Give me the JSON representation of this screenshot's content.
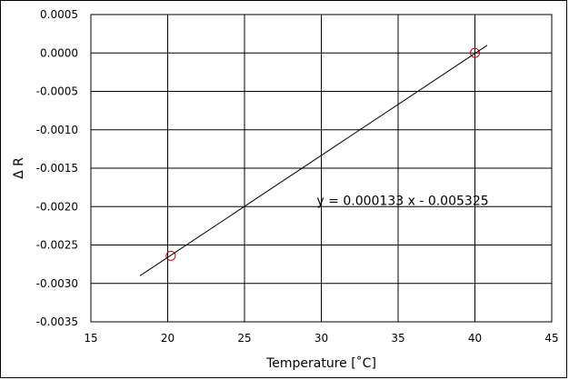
{
  "chart_data": {
    "type": "scatter",
    "xlabel": "Temperature [˚C]",
    "ylabel": "Δ R",
    "xlim": [
      15,
      45
    ],
    "ylim": [
      -0.0035,
      0.0005
    ],
    "x_ticks": [
      15,
      20,
      25,
      30,
      35,
      40,
      45
    ],
    "x_tick_labels": [
      "15",
      "20",
      "25",
      "30",
      "35",
      "40",
      "45"
    ],
    "y_ticks": [
      0.0005,
      0.0,
      -0.0005,
      -0.001,
      -0.0015,
      -0.002,
      -0.0025,
      -0.003,
      -0.0035
    ],
    "y_tick_labels": [
      "0.0005",
      "0.0000",
      "-0.0005",
      "-0.0010",
      "-0.0015",
      "-0.0020",
      "-0.0025",
      "-0.0030",
      "-0.0035"
    ],
    "grid": true,
    "series": [
      {
        "type": "scatter",
        "x": [
          20.2,
          40.0
        ],
        "y": [
          -0.00264,
          0.0
        ],
        "marker": "open-circle",
        "color": "#cc0000"
      },
      {
        "type": "line",
        "x": [
          18.2,
          40.8
        ],
        "y": [
          -0.0029,
          0.0001
        ],
        "color": "#000000"
      }
    ],
    "annotation": {
      "text": "y = 0.000133 x - 0.005325",
      "x": 29.7,
      "y": -0.00192
    }
  }
}
